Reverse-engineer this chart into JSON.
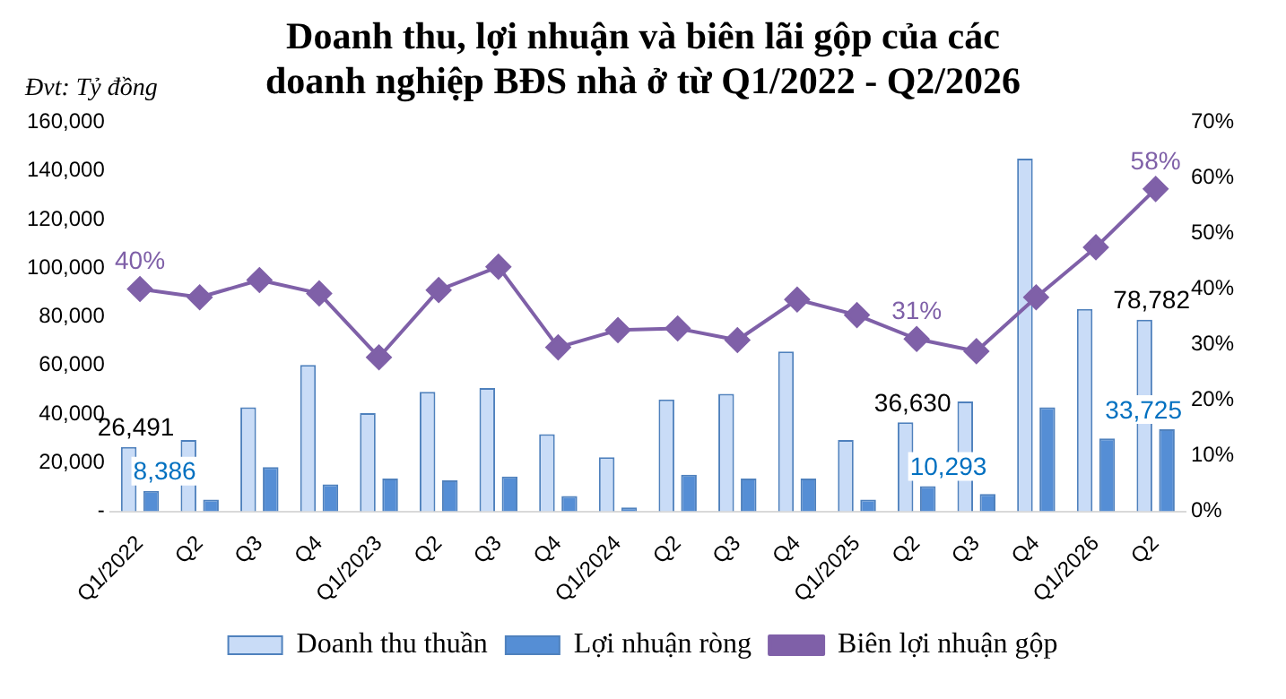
{
  "chart_data": {
    "type": "bar",
    "title": "Doanh thu, lợi nhuận và biên lãi gộp của các doanh nghiệp BĐS nhà ở từ Q1/2022 - Q2/2026",
    "annotations": [
      "Đvt: Tỷ đồng"
    ],
    "categories": [
      "Q1/2022",
      "Q2",
      "Q3",
      "Q4",
      "Q1/2023",
      "Q2",
      "Q3",
      "Q4",
      "Q1/2024",
      "Q2",
      "Q3",
      "Q4",
      "Q1/2025",
      "Q2",
      "Q3",
      "Q4",
      "Q1/2026",
      "Q2"
    ],
    "series": [
      {
        "name": "Doanh thu thuần",
        "color": "#c9dcf7",
        "values": [
          26491,
          29300,
          42800,
          60200,
          40400,
          49100,
          50700,
          31700,
          22200,
          46000,
          48300,
          65700,
          29300,
          36630,
          45200,
          145000,
          83200,
          78782
        ],
        "value_labels": [
          "26,491",
          null,
          null,
          null,
          null,
          null,
          null,
          null,
          null,
          null,
          null,
          null,
          null,
          "36,630",
          null,
          null,
          null,
          "78,782"
        ]
      },
      {
        "name": "Lợi nhuận ròng",
        "color": "#558ed5",
        "values": [
          8386,
          4800,
          18200,
          11100,
          13500,
          12700,
          14300,
          6300,
          1600,
          15000,
          13500,
          13500,
          4800,
          10293,
          7100,
          42800,
          30000,
          33725
        ],
        "value_labels": [
          "8,386",
          null,
          null,
          null,
          null,
          null,
          null,
          null,
          null,
          null,
          null,
          null,
          null,
          "10,293",
          null,
          null,
          null,
          "33,725"
        ]
      },
      {
        "name": "Biên lợi nhuận gộp",
        "type": "line",
        "axis": "y2",
        "color": "#7f60a8",
        "values": [
          40,
          38.5,
          41.6,
          39.2,
          27.7,
          39.8,
          44,
          29.5,
          32.6,
          32.9,
          30.8,
          38.1,
          35.3,
          31,
          28.8,
          38.5,
          47.5,
          58
        ],
        "value_labels": [
          "40%",
          null,
          null,
          null,
          null,
          null,
          null,
          null,
          null,
          null,
          null,
          null,
          null,
          "31%",
          null,
          null,
          null,
          "58%"
        ]
      }
    ],
    "ylim": [
      0,
      160000
    ],
    "yticks": [
      {
        "value": 0,
        "label": "-"
      },
      {
        "value": 20000,
        "label": "20,000"
      },
      {
        "value": 40000,
        "label": "40,000"
      },
      {
        "value": 60000,
        "label": "60,000"
      },
      {
        "value": 80000,
        "label": "80,000"
      },
      {
        "value": 100000,
        "label": "100,000"
      },
      {
        "value": 120000,
        "label": "120,000"
      },
      {
        "value": 140000,
        "label": "140,000"
      },
      {
        "value": 160000,
        "label": "160,000"
      }
    ],
    "y2lim": [
      0,
      70
    ],
    "y2ticks": [
      {
        "value": 0,
        "label": "0%"
      },
      {
        "value": 10,
        "label": "10%"
      },
      {
        "value": 20,
        "label": "20%"
      },
      {
        "value": 30,
        "label": "30%"
      },
      {
        "value": 40,
        "label": "40%"
      },
      {
        "value": 50,
        "label": "50%"
      },
      {
        "value": 60,
        "label": "60%"
      },
      {
        "value": 70,
        "label": "70%"
      }
    ],
    "grid": false,
    "legend": "bottom",
    "marker": "diamond",
    "line_style": "solid"
  }
}
